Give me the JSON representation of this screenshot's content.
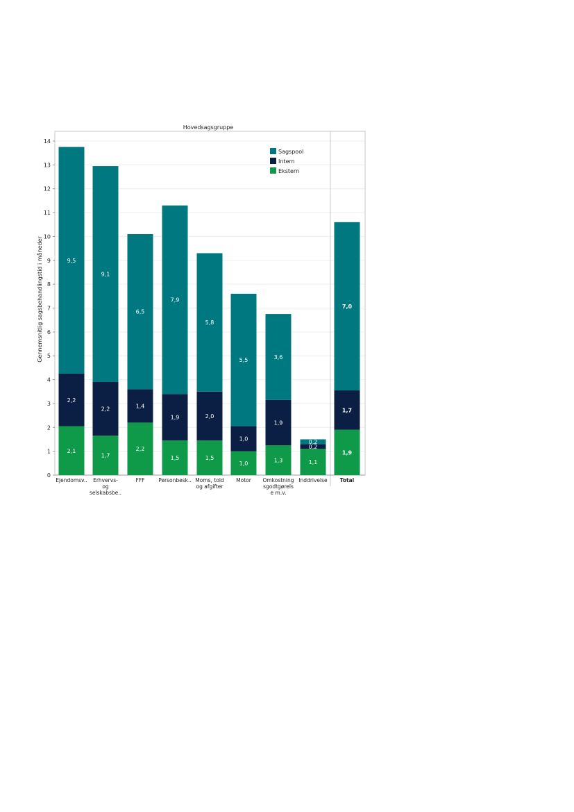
{
  "chart_data": {
    "type": "bar",
    "stacked": true,
    "title": "Hovedsagsgruppe",
    "ylabel": "Gennemsnitlig sagsbehandlingstid i måneder",
    "ylim": [
      0,
      14
    ],
    "yticks": [
      "0",
      "1",
      "2",
      "3",
      "4",
      "5",
      "6",
      "7",
      "8",
      "9",
      "10",
      "11",
      "12",
      "13",
      "14"
    ],
    "grid": true,
    "legend_position": "top-right",
    "categories": [
      [
        "Ejendomsv.."
      ],
      [
        "Erhvervs-",
        "og",
        "selskabsbe.."
      ],
      [
        "FFF"
      ],
      [
        "Personbesk.."
      ],
      [
        "Moms, told",
        "og afgifter"
      ],
      [
        "Motor"
      ],
      [
        "Omkostning",
        "sgodtgørels",
        "e m.v."
      ],
      [
        "Inddrivelse"
      ],
      [
        "Total"
      ]
    ],
    "series": [
      {
        "name": "Ekstern",
        "color": "#0e9a48",
        "values": [
          2.05,
          1.65,
          2.2,
          1.45,
          1.45,
          1.0,
          1.25,
          1.1,
          1.9
        ],
        "labels": [
          "2,1",
          "1,7",
          "2,2",
          "1,5",
          "1,5",
          "1,0",
          "1,3",
          "1,1",
          "1,9"
        ]
      },
      {
        "name": "Intern",
        "color": "#0b1f44",
        "values": [
          2.2,
          2.25,
          1.4,
          1.95,
          2.05,
          1.05,
          1.9,
          0.2,
          1.65
        ],
        "labels": [
          "2,2",
          "2,2",
          "1,4",
          "1,9",
          "2,0",
          "1,0",
          "1,9",
          "0,2",
          "1,7"
        ]
      },
      {
        "name": "Sagspool",
        "color": "#007880",
        "values": [
          9.5,
          9.05,
          6.5,
          7.9,
          5.8,
          5.55,
          3.6,
          0.2,
          7.05
        ],
        "labels": [
          "9,5",
          "9,1",
          "6,5",
          "7,9",
          "5,8",
          "5,5",
          "3,6",
          "0,2",
          "7,0"
        ]
      }
    ],
    "bold_categories": [
      8
    ]
  }
}
